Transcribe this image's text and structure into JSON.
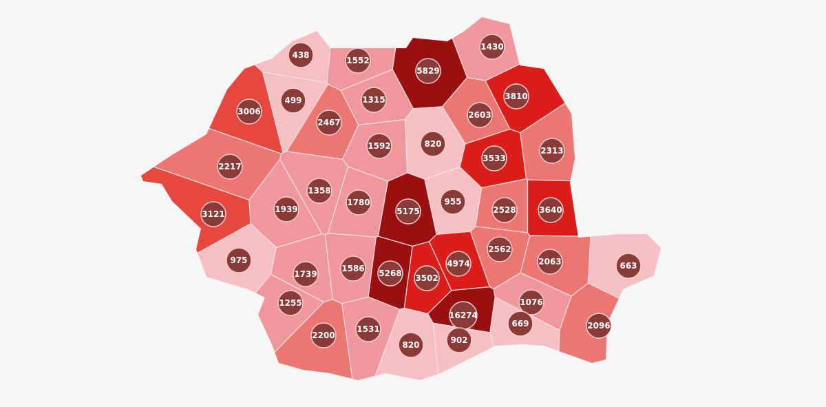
{
  "map": {
    "type": "choropleth",
    "region": "Romania counties",
    "background": "#f6f6f6",
    "bubble_color": "#8a3b37",
    "color_tiers": [
      {
        "min": 0,
        "max": 999,
        "color": "#f5bfc3"
      },
      {
        "min": 1000,
        "max": 1999,
        "color": "#f0969d"
      },
      {
        "min": 2000,
        "max": 2999,
        "color": "#ec7671"
      },
      {
        "min": 3000,
        "max": 3499,
        "color": "#e6473f"
      },
      {
        "min": 3500,
        "max": 4999,
        "color": "#dc1e1a"
      },
      {
        "min": 5000,
        "max": 100000,
        "color": "#9a1010"
      }
    ],
    "values": [
      438,
      1552,
      5829,
      1430,
      499,
      1315,
      3810,
      3006,
      2467,
      2603,
      820,
      1592,
      3533,
      2313,
      2217,
      1358,
      1780,
      5175,
      955,
      2528,
      3640,
      3121,
      1939,
      975,
      1739,
      1586,
      5268,
      3502,
      4974,
      2562,
      2063,
      663,
      1255,
      1076,
      16274,
      669,
      902,
      2200,
      1531,
      820,
      2096
    ]
  }
}
